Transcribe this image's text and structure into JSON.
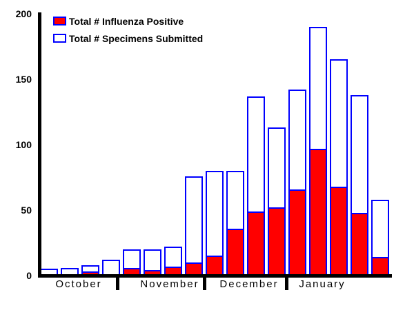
{
  "legend": {
    "items": [
      {
        "label": "Total # Influenza Positive",
        "swatch": "red-filled",
        "swatch_fill": "#ff0000",
        "swatch_border": "#0000ff"
      },
      {
        "label": "Total # Specimens Submitted",
        "swatch": "white-outline",
        "swatch_fill": "#ffffff",
        "swatch_border": "#0000ff"
      }
    ]
  },
  "colors": {
    "positive_fill": "#ff0000",
    "bar_outline": "#0000ff",
    "axis": "#000000",
    "background": "#ffffff"
  },
  "chart_data": {
    "type": "bar",
    "title": "",
    "xlabel": "",
    "ylabel": "",
    "ylim": [
      0,
      200
    ],
    "yticks": [
      0,
      50,
      100,
      150,
      200
    ],
    "grid": false,
    "legend_position": "top-left",
    "categories": [
      "October",
      "November",
      "December",
      "January"
    ],
    "bars_per_month": [
      4,
      4,
      4,
      5
    ],
    "series": [
      {
        "name": "Total # Influenza Positive",
        "style": "red-filled-blue-outline",
        "values": [
          0,
          0,
          3,
          0,
          6,
          4,
          7,
          10,
          15,
          36,
          49,
          52,
          66,
          97,
          68,
          48,
          14
        ]
      },
      {
        "name": "Total # Specimens Submitted",
        "style": "white-filled-blue-outline",
        "values": [
          5,
          6,
          8,
          12,
          20,
          20,
          22,
          76,
          80,
          80,
          137,
          113,
          142,
          190,
          165,
          138,
          58
        ]
      }
    ]
  }
}
